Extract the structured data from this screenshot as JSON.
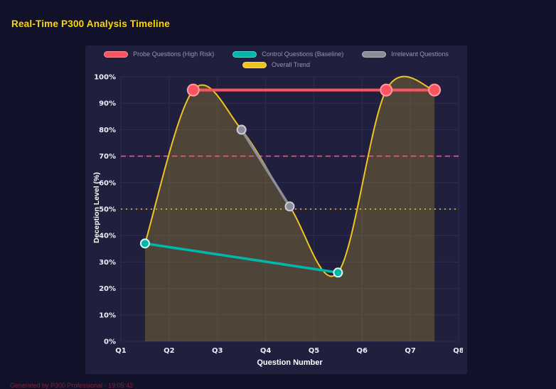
{
  "page": {
    "title": "Real-Time P300 Analysis Timeline",
    "footer": "Generated by P300 Professional - 19:05:42"
  },
  "colors": {
    "background": "#11112a",
    "panel": "#20203e",
    "title": "#ffd700",
    "axis_text": "#eceef6",
    "legend_text": "#9595ad"
  },
  "chart_data": {
    "type": "line",
    "title": "Real-Time P300 Analysis Timeline",
    "xlabel": "Question Number",
    "ylabel": "Deception Level (%)",
    "xlim": [
      1,
      8
    ],
    "ylim": [
      0,
      100
    ],
    "x_ticks": [
      "Q1",
      "Q2",
      "Q3",
      "Q4",
      "Q5",
      "Q6",
      "Q7",
      "Q8"
    ],
    "x_tick_values": [
      1,
      2,
      3,
      4,
      5,
      6,
      7,
      8
    ],
    "y_tick_values": [
      0,
      10,
      20,
      30,
      40,
      50,
      60,
      70,
      80,
      90,
      100
    ],
    "y_tick_suffix": "%",
    "grid": true,
    "grid_color": "#2d2d52",
    "legend_position": "top",
    "series": [
      {
        "name": "Probe Questions (High Risk)",
        "color": "#fa5460",
        "marker_ring": "#ff9aa4",
        "points": [
          [
            2.5,
            95
          ],
          [
            6.5,
            95
          ],
          [
            7.5,
            95
          ]
        ],
        "marker_radius": 8,
        "line_width": 4,
        "smooth": false
      },
      {
        "name": "Control Questions (Baseline)",
        "color": "#00b8a9",
        "marker_ring": "#d6f7f2",
        "points": [
          [
            1.5,
            37
          ],
          [
            5.5,
            26
          ]
        ],
        "marker_radius": 6,
        "line_width": 3.5,
        "smooth": false
      },
      {
        "name": "Irrelevant Questions",
        "color": "#8d8d99",
        "marker_ring": "#cdcdd6",
        "points": [
          [
            3.5,
            80
          ],
          [
            4.5,
            51
          ]
        ],
        "marker_radius": 6,
        "line_width": 3.5,
        "smooth": false
      },
      {
        "name": "Overall Trend",
        "color": "#f0c420",
        "marker_ring": "#f0c420",
        "points": [
          [
            1.5,
            37
          ],
          [
            2.5,
            95
          ],
          [
            3.5,
            80
          ],
          [
            4.5,
            51
          ],
          [
            5.5,
            26
          ],
          [
            6.5,
            95
          ],
          [
            7.5,
            95
          ]
        ],
        "marker_radius": 0,
        "line_width": 2,
        "smooth": true,
        "fill": true,
        "fill_color": "#f0c42038"
      }
    ],
    "thresholds": [
      {
        "value": 70,
        "color": "#ff4d7d",
        "style": "dashed"
      },
      {
        "value": 50,
        "color": "#f0c420",
        "style": "dotted"
      }
    ]
  }
}
